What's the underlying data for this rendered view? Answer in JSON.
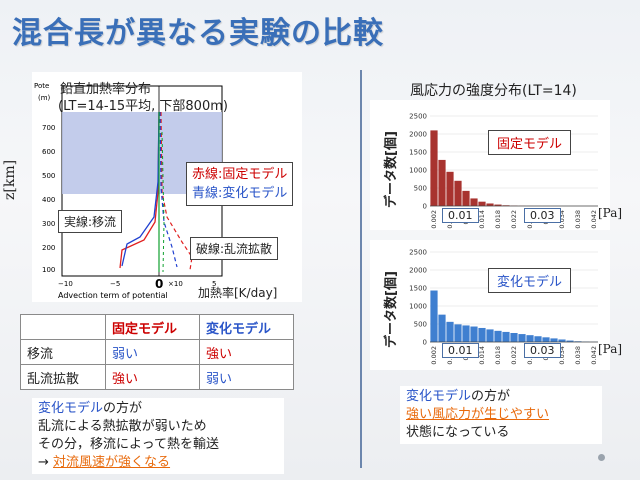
{
  "title": "混合長が異なる実験の比較",
  "left_plot": {
    "title_line1": "鉛直加熱率分布",
    "title_line2": "(LT=14-15平均, 下部800m)",
    "y_label": "z[km]",
    "y_ticks": [
      "700",
      "600",
      "500",
      "400",
      "300",
      "200",
      "100"
    ],
    "x_ticks": [
      "−10",
      "−5",
      "0",
      "5"
    ],
    "x_zero_label": "0",
    "x_multiplier": "×10",
    "x_caption": "Advection term of potential",
    "x_unit_label": "加熱率[K/day]",
    "corner_label_1": "Pote",
    "corner_label_2": "(m)",
    "legend_red": "赤線:固定モデル",
    "legend_blue": "青線:変化モデル",
    "solid_label": "実線:移流",
    "dashed_label": "破線:乱流拡散"
  },
  "table": {
    "header": [
      "",
      "固定モデル",
      "変化モデル"
    ],
    "rows": [
      [
        "移流",
        "弱い",
        "強い"
      ],
      [
        "乱流拡散",
        "強い",
        "弱い"
      ]
    ]
  },
  "left_note": {
    "line1_a": "変化モデル",
    "line1_b": "の方が",
    "line2": "乱流による熱拡散が弱いため",
    "line3": "その分，移流によって熱を輸送",
    "line4_a": "→ ",
    "line4_b": "対流風速が強くなる"
  },
  "right_title": "風応力の強度分布(LT=14)",
  "hist_common": {
    "ylabel": "データ数[個]",
    "x_ticks": [
      "0.002",
      "0.006",
      "0.01",
      "0.014",
      "0.018",
      "0.022",
      "0.026",
      "0.03",
      "0.034",
      "0.038",
      "0.042"
    ],
    "unit": "[Pa]",
    "box_a": "0.01",
    "box_b": "0.03"
  },
  "chart_data": [
    {
      "type": "bar",
      "label": "固定モデル",
      "categories": [
        "0.002",
        "0.004",
        "0.006",
        "0.008",
        "0.01",
        "0.012",
        "0.014",
        "0.016",
        "0.018",
        "0.02",
        "0.022",
        "0.024",
        "0.026",
        "0.028",
        "0.03",
        "0.032",
        "0.034",
        "0.036",
        "0.038",
        "0.04",
        "0.042"
      ],
      "values": [
        2100,
        1280,
        950,
        700,
        420,
        210,
        120,
        70,
        40,
        20,
        10,
        5,
        3,
        2,
        1,
        1,
        0,
        0,
        0,
        0,
        0
      ],
      "ylim": [
        0,
        2500
      ],
      "y_ticks": [
        0,
        500,
        1000,
        1500,
        2000,
        2500
      ],
      "color": "#a8332f"
    },
    {
      "type": "bar",
      "label": "変化モデル",
      "categories": [
        "0.002",
        "0.004",
        "0.006",
        "0.008",
        "0.01",
        "0.012",
        "0.014",
        "0.016",
        "0.018",
        "0.02",
        "0.022",
        "0.024",
        "0.026",
        "0.028",
        "0.03",
        "0.032",
        "0.034",
        "0.036",
        "0.038",
        "0.04",
        "0.042"
      ],
      "values": [
        1430,
        760,
        560,
        490,
        460,
        430,
        390,
        350,
        310,
        280,
        250,
        220,
        190,
        160,
        130,
        100,
        70,
        40,
        20,
        10,
        5
      ],
      "ylim": [
        0,
        2500
      ],
      "y_ticks": [
        0,
        500,
        1000,
        1500,
        2000,
        2500
      ],
      "color": "#3f7fd0"
    }
  ],
  "right_note": {
    "line1_a": "変化モデル",
    "line1_b": "の方が",
    "line2": "強い風応力が生じやすい",
    "line3": "状態になっている"
  },
  "colors": {
    "title": "#3a6fb8",
    "red": "#cc0000",
    "blue": "#2a55c8",
    "orange": "#e86a0c"
  }
}
